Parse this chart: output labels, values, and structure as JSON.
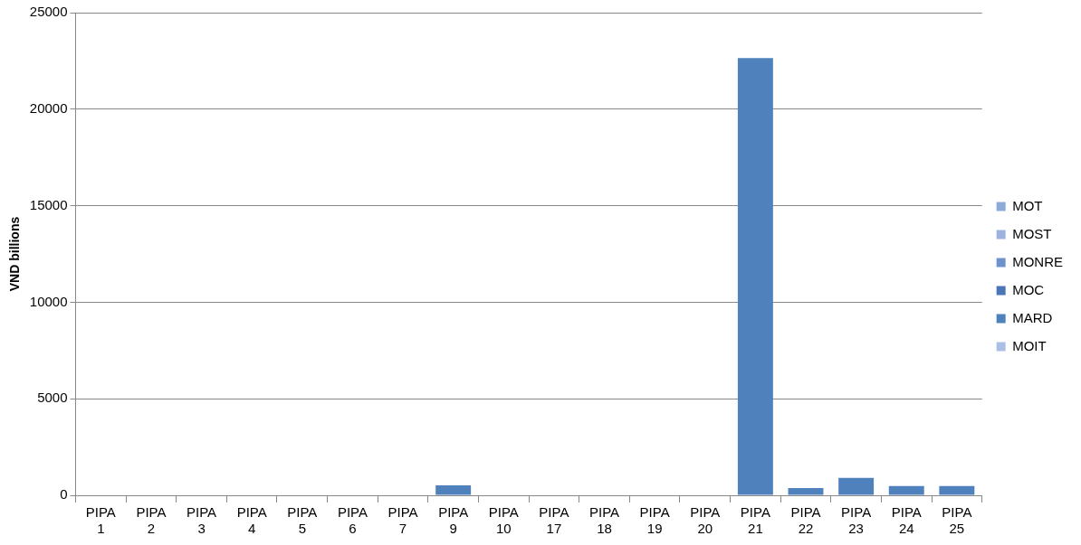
{
  "chart_data": {
    "type": "bar",
    "ylabel": "VND billions",
    "stacked": true,
    "grid": "y",
    "legend": "right",
    "categories": [
      "PIPA 1",
      "PIPA 2",
      "PIPA 3",
      "PIPA 4",
      "PIPA 5",
      "PIPA 6",
      "PIPA 7",
      "PIPA 9",
      "PIPA 10",
      "PIPA 17",
      "PIPA 18",
      "PIPA 19",
      "PIPA 20",
      "PIPA 21",
      "PIPA 22",
      "PIPA 23",
      "PIPA 24",
      "PIPA 25"
    ],
    "ylim": [
      0,
      25000
    ],
    "yticks": [
      0,
      5000,
      10000,
      15000,
      20000,
      25000
    ],
    "series": [
      {
        "name": "MOIT",
        "color": "#a9bfe6",
        "values": [
          0,
          0,
          0,
          0,
          0,
          0,
          0,
          0,
          0,
          0,
          0,
          0,
          0,
          0,
          0,
          0,
          0,
          0
        ]
      },
      {
        "name": "MARD",
        "color": "#4f81bd",
        "values": [
          0,
          0,
          0,
          0,
          0,
          0,
          0,
          520,
          0,
          0,
          0,
          0,
          0,
          22650,
          380,
          900,
          480,
          480
        ]
      },
      {
        "name": "MOC",
        "color": "#4a76b8",
        "values": [
          0,
          0,
          0,
          0,
          0,
          0,
          0,
          0,
          0,
          0,
          0,
          0,
          0,
          0,
          0,
          0,
          0,
          0
        ]
      },
      {
        "name": "MONRE",
        "color": "#6f91cc",
        "values": [
          0,
          0,
          0,
          0,
          0,
          0,
          0,
          0,
          0,
          0,
          0,
          0,
          0,
          0,
          0,
          0,
          0,
          0
        ]
      },
      {
        "name": "MOST",
        "color": "#9bb3de",
        "values": [
          0,
          0,
          0,
          0,
          0,
          0,
          0,
          0,
          0,
          0,
          0,
          0,
          0,
          0,
          0,
          0,
          0,
          0
        ]
      },
      {
        "name": "MOT",
        "color": "#8eaadb",
        "values": [
          0,
          0,
          0,
          0,
          0,
          0,
          0,
          0,
          0,
          0,
          0,
          0,
          0,
          0,
          0,
          0,
          0,
          0
        ]
      }
    ]
  }
}
